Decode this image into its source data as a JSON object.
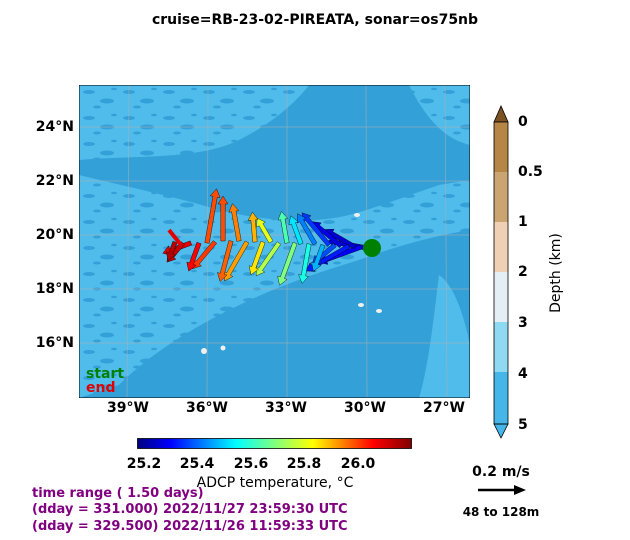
{
  "title": "cruise=RB-23-02-PIREATA,   sonar=os75nb",
  "map": {
    "lat_labels": [
      "24°N",
      "22°N",
      "20°N",
      "18°N",
      "16°N"
    ],
    "lon_labels": [
      "39°W",
      "36°W",
      "33°W",
      "30°W",
      "27°W"
    ],
    "legend_start": "start",
    "legend_end": "end",
    "colors": {
      "ocean_shallow": "#4fbcec",
      "ocean_deep": "#34a0d8",
      "start": "#008000",
      "end": "#e00000"
    }
  },
  "depth_colorbar": {
    "label": "Depth (km)",
    "ticks": [
      "0",
      "0.5",
      "1",
      "2",
      "3",
      "4",
      "5"
    ]
  },
  "temp_colorbar": {
    "label": "ADCP temperature, °C",
    "ticks": [
      "25.2",
      "25.4",
      "25.6",
      "25.8",
      "26.0"
    ]
  },
  "scale": {
    "speed_label": "0.2 m/s",
    "depth_range": "48 to 128m"
  },
  "time_info": {
    "range": "time range ( 1.50 days)",
    "end": "(dday = 331.000) 2022/11/27 23:59:30 UTC",
    "start": "(dday = 329.500) 2022/11/26 11:59:33 UTC"
  },
  "chart_data": {
    "type": "scatter",
    "description_fields": "ship track with ADCP current vectors colored by temperature",
    "x_label": "",
    "y_label": "",
    "xlim": [
      -41,
      -26
    ],
    "ylim": [
      14,
      25.5
    ],
    "start_point": {
      "lon": -30.2,
      "lat": 19.6
    },
    "end_point": {
      "lon": -37.6,
      "lat": 19.8
    },
    "color_range": [
      25.15,
      26.2
    ]
  }
}
